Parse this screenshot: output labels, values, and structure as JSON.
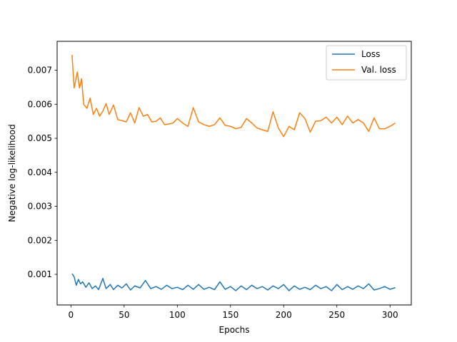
{
  "chart_data": {
    "type": "line",
    "title": "",
    "xlabel": "Epochs",
    "ylabel": "Negative log-likelihood",
    "xlim": [
      -13,
      320
    ],
    "ylim": [
      0.0001,
      0.00785
    ],
    "xticks": [
      0,
      50,
      100,
      150,
      200,
      250,
      300
    ],
    "yticks": [
      0.001,
      0.002,
      0.003,
      0.004,
      0.005,
      0.006,
      0.007
    ],
    "xtick_labels": [
      "0",
      "50",
      "100",
      "150",
      "200",
      "250",
      "300"
    ],
    "ytick_labels": [
      "0.001",
      "0.002",
      "0.003",
      "0.004",
      "0.005",
      "0.006",
      "0.007"
    ],
    "grid": false,
    "legend_position": "top-right",
    "series": [
      {
        "name": "Loss",
        "color": "#1f77b4",
        "x": [
          1,
          3,
          5,
          7,
          9,
          11,
          14,
          17,
          20,
          23,
          26,
          30,
          33,
          37,
          40,
          44,
          48,
          52,
          56,
          60,
          65,
          70,
          75,
          80,
          85,
          90,
          95,
          100,
          105,
          110,
          115,
          120,
          125,
          130,
          135,
          140,
          145,
          150,
          155,
          160,
          165,
          170,
          175,
          180,
          185,
          190,
          195,
          200,
          205,
          210,
          215,
          220,
          225,
          230,
          235,
          240,
          245,
          250,
          255,
          260,
          265,
          270,
          275,
          280,
          285,
          290,
          295,
          300,
          305
        ],
        "y": [
          0.00102,
          0.00093,
          0.00068,
          0.00085,
          0.00072,
          0.00078,
          0.00062,
          0.00075,
          0.00058,
          0.00066,
          0.00055,
          0.00088,
          0.00058,
          0.0007,
          0.00055,
          0.00068,
          0.0006,
          0.00072,
          0.00054,
          0.00066,
          0.0006,
          0.00082,
          0.00058,
          0.00064,
          0.00056,
          0.00068,
          0.00058,
          0.00062,
          0.00055,
          0.00068,
          0.00056,
          0.0007,
          0.00056,
          0.00062,
          0.00055,
          0.00078,
          0.00056,
          0.00064,
          0.00052,
          0.00066,
          0.00055,
          0.00068,
          0.00058,
          0.00064,
          0.00054,
          0.00066,
          0.00058,
          0.0007,
          0.00052,
          0.00066,
          0.00056,
          0.00062,
          0.00055,
          0.00068,
          0.00058,
          0.00064,
          0.00052,
          0.0007,
          0.00055,
          0.00064,
          0.00056,
          0.00066,
          0.00058,
          0.00072,
          0.00054,
          0.00058,
          0.00064,
          0.00056,
          0.00061
        ]
      },
      {
        "name": "Val. loss",
        "color": "#ff7f0e",
        "x": [
          1,
          3,
          6,
          8,
          10,
          12,
          15,
          18,
          21,
          24,
          27,
          30,
          33,
          36,
          40,
          44,
          48,
          52,
          56,
          60,
          64,
          68,
          72,
          76,
          80,
          84,
          88,
          92,
          96,
          100,
          105,
          110,
          115,
          120,
          125,
          130,
          135,
          140,
          145,
          150,
          155,
          160,
          165,
          170,
          175,
          180,
          185,
          190,
          195,
          200,
          205,
          210,
          215,
          220,
          225,
          230,
          235,
          240,
          245,
          250,
          255,
          260,
          265,
          270,
          275,
          280,
          285,
          290,
          295,
          300,
          305
        ],
        "y": [
          0.00745,
          0.00648,
          0.00695,
          0.00648,
          0.00675,
          0.006,
          0.00588,
          0.00618,
          0.0057,
          0.00588,
          0.00565,
          0.0058,
          0.00602,
          0.0057,
          0.00598,
          0.00555,
          0.00552,
          0.00548,
          0.00575,
          0.00545,
          0.0059,
          0.00565,
          0.0057,
          0.00548,
          0.0055,
          0.0056,
          0.0054,
          0.00542,
          0.00545,
          0.00558,
          0.00545,
          0.00535,
          0.0059,
          0.00548,
          0.0054,
          0.00535,
          0.0054,
          0.0056,
          0.00538,
          0.00535,
          0.00528,
          0.00532,
          0.00558,
          0.00545,
          0.0053,
          0.00525,
          0.0052,
          0.00578,
          0.0053,
          0.00505,
          0.00535,
          0.00525,
          0.00575,
          0.00558,
          0.00518,
          0.0055,
          0.00552,
          0.00562,
          0.00545,
          0.00562,
          0.0054,
          0.00565,
          0.00545,
          0.00555,
          0.00545,
          0.0052,
          0.0056,
          0.00528,
          0.00528,
          0.00535,
          0.00545
        ]
      }
    ]
  }
}
